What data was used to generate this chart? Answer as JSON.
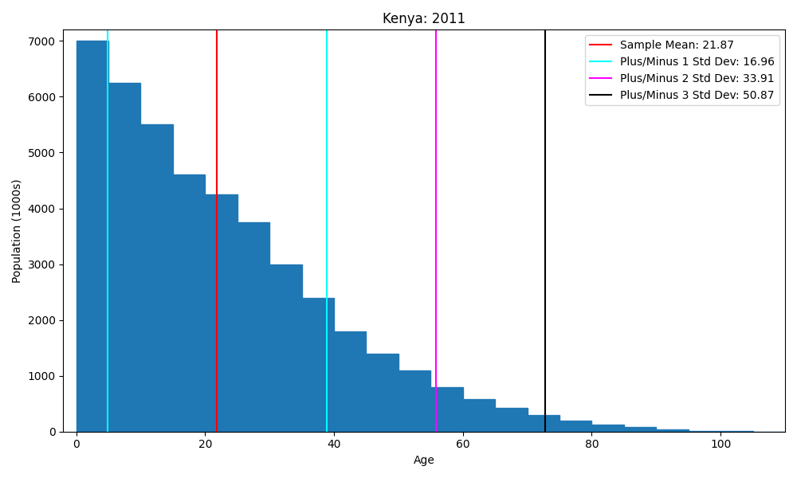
{
  "title": "Kenya: 2011",
  "xlabel": "Age",
  "ylabel": "Population (1000s)",
  "bar_color": "#1f77b4",
  "bin_edges": [
    0,
    5,
    10,
    15,
    20,
    25,
    30,
    35,
    40,
    45,
    50,
    55,
    60,
    65,
    70,
    75,
    80,
    85,
    90,
    95,
    100,
    105,
    110
  ],
  "bar_heights": [
    7000,
    6250,
    5500,
    4600,
    4250,
    3750,
    3000,
    2400,
    1800,
    1400,
    1100,
    800,
    575,
    425,
    300,
    200,
    125,
    75,
    40,
    15,
    5,
    1
  ],
  "mean": 21.87,
  "std": 16.96,
  "mean_color": "red",
  "std1_color": "cyan",
  "std2_color": "magenta",
  "std3_color": "black",
  "legend_mean": "Sample Mean: 21.87",
  "legend_std1": "Plus/Minus 1 Std Dev: 16.96",
  "legend_std2": "Plus/Minus 2 Std Dev: 33.91",
  "legend_std3": "Plus/Minus 3 Std Dev: 50.87",
  "xlim": [
    -2,
    110
  ],
  "ylim": [
    0,
    7200
  ],
  "xticks": [
    0,
    20,
    40,
    60,
    80,
    100
  ],
  "figsize": [
    10.0,
    6.0
  ],
  "dpi": 100
}
